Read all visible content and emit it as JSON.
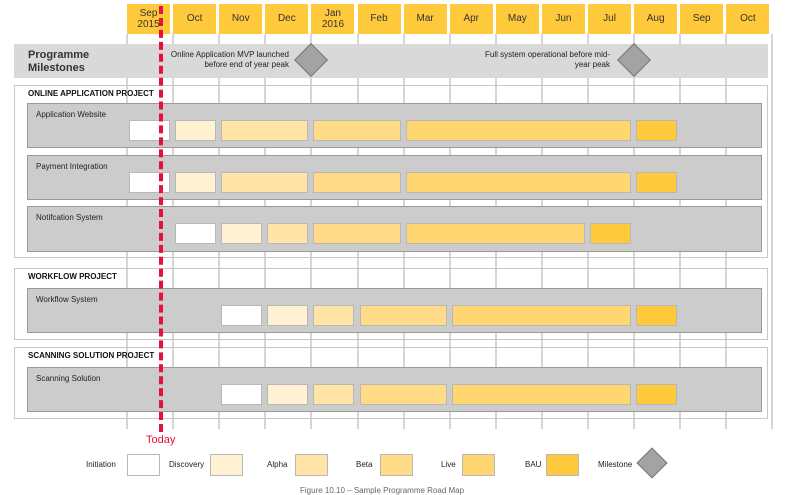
{
  "months": [
    {
      "label": "Sep",
      "year": "2015"
    },
    {
      "label": "Oct",
      "year": ""
    },
    {
      "label": "Nov",
      "year": ""
    },
    {
      "label": "Dec",
      "year": ""
    },
    {
      "label": "Jan",
      "year": "2016"
    },
    {
      "label": "Feb",
      "year": ""
    },
    {
      "label": "Mar",
      "year": ""
    },
    {
      "label": "Apr",
      "year": ""
    },
    {
      "label": "May",
      "year": ""
    },
    {
      "label": "Jun",
      "year": ""
    },
    {
      "label": "Jul",
      "year": ""
    },
    {
      "label": "Aug",
      "year": ""
    },
    {
      "label": "Sep",
      "year": ""
    },
    {
      "label": "Oct",
      "year": ""
    }
  ],
  "milestones": {
    "title": "Programme Milestones",
    "items": [
      {
        "text": "Online Application MVP launched before end of year peak"
      },
      {
        "text": "Full system operational before mid-year peak"
      }
    ]
  },
  "phase_colors": {
    "Initiation": "#ffffff",
    "Discovery": "#fff1d2",
    "Alpha": "#ffe4a6",
    "Beta": "#ffdb88",
    "Live": "#ffd670",
    "BAU": "#ffc93c"
  },
  "projects": [
    {
      "name": "ONLINE APPLICATION PROJECT",
      "rows": [
        {
          "name": "Application Website",
          "bars": [
            {
              "phase": "Initiation",
              "start": 0,
              "end": 1
            },
            {
              "phase": "Discovery",
              "start": 1,
              "end": 2
            },
            {
              "phase": "Alpha",
              "start": 2,
              "end": 4
            },
            {
              "phase": "Beta",
              "start": 4,
              "end": 6
            },
            {
              "phase": "Live",
              "start": 6,
              "end": 11
            },
            {
              "phase": "BAU",
              "start": 11,
              "end": 12
            }
          ]
        },
        {
          "name": "Payment Integration",
          "bars": [
            {
              "phase": "Initiation",
              "start": 0,
              "end": 1
            },
            {
              "phase": "Discovery",
              "start": 1,
              "end": 2
            },
            {
              "phase": "Alpha",
              "start": 2,
              "end": 4
            },
            {
              "phase": "Beta",
              "start": 4,
              "end": 6
            },
            {
              "phase": "Live",
              "start": 6,
              "end": 11
            },
            {
              "phase": "BAU",
              "start": 11,
              "end": 12
            }
          ]
        },
        {
          "name": "Notifcation System",
          "bars": [
            {
              "phase": "Initiation",
              "start": 1,
              "end": 2
            },
            {
              "phase": "Discovery",
              "start": 2,
              "end": 3
            },
            {
              "phase": "Alpha",
              "start": 3,
              "end": 4
            },
            {
              "phase": "Beta",
              "start": 4,
              "end": 6
            },
            {
              "phase": "Live",
              "start": 6,
              "end": 10
            },
            {
              "phase": "BAU",
              "start": 10,
              "end": 11
            }
          ]
        }
      ]
    },
    {
      "name": "WORKFLOW PROJECT",
      "rows": [
        {
          "name": "Workflow System",
          "bars": [
            {
              "phase": "Initiation",
              "start": 2,
              "end": 3
            },
            {
              "phase": "Discovery",
              "start": 3,
              "end": 4
            },
            {
              "phase": "Alpha",
              "start": 4,
              "end": 5
            },
            {
              "phase": "Beta",
              "start": 5,
              "end": 7
            },
            {
              "phase": "Live",
              "start": 7,
              "end": 11
            },
            {
              "phase": "BAU",
              "start": 11,
              "end": 12
            }
          ]
        }
      ]
    },
    {
      "name": "SCANNING SOLUTION PROJECT",
      "rows": [
        {
          "name": "Scanning Solution",
          "bars": [
            {
              "phase": "Initiation",
              "start": 2,
              "end": 3
            },
            {
              "phase": "Discovery",
              "start": 3,
              "end": 4
            },
            {
              "phase": "Alpha",
              "start": 4,
              "end": 5
            },
            {
              "phase": "Beta",
              "start": 5,
              "end": 7
            },
            {
              "phase": "Live",
              "start": 7,
              "end": 11
            },
            {
              "phase": "BAU",
              "start": 11,
              "end": 12
            }
          ]
        }
      ]
    }
  ],
  "today": {
    "label": "Today"
  },
  "legend": [
    {
      "label": "Initiation",
      "phase": "Initiation"
    },
    {
      "label": "Discovery",
      "phase": "Discovery"
    },
    {
      "label": "Alpha",
      "phase": "Alpha"
    },
    {
      "label": "Beta",
      "phase": "Beta"
    },
    {
      "label": "Live",
      "phase": "Live"
    },
    {
      "label": "BAU",
      "phase": "BAU"
    },
    {
      "label": "Milestone",
      "phase": "Milestone"
    }
  ],
  "caption": "Figure 10.10 – Sample Programme Road Map"
}
